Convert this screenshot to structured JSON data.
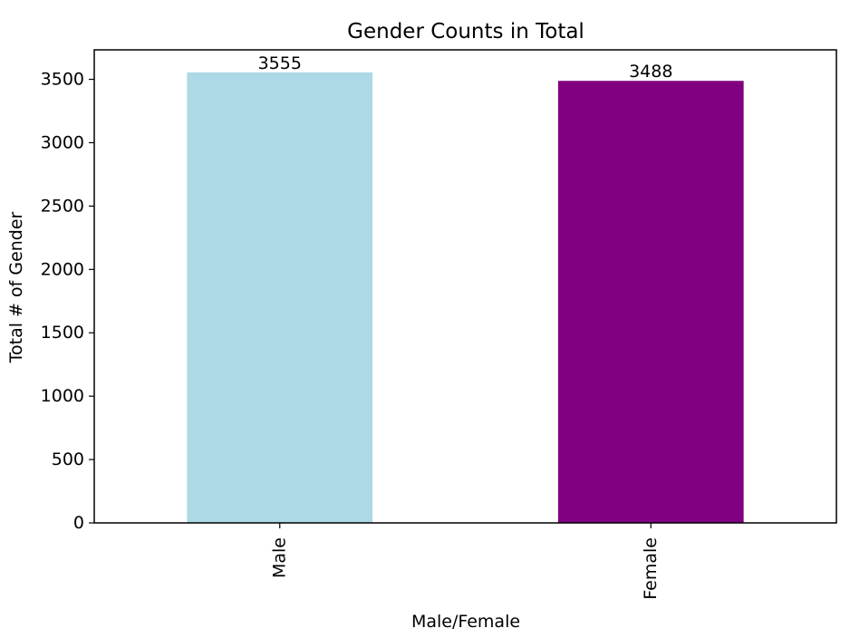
{
  "chart_data": {
    "type": "bar",
    "title": "Gender Counts in Total",
    "xlabel": "Male/Female",
    "ylabel": "Total # of Gender",
    "categories": [
      "Male",
      "Female"
    ],
    "values": [
      3555,
      3488
    ],
    "value_labels": [
      "3555",
      "3488"
    ],
    "colors": [
      "#add8e6",
      "#800080"
    ],
    "ylim": [
      0,
      3732.75
    ],
    "yticks": [
      0,
      500,
      1000,
      1500,
      2000,
      2500,
      3000,
      3500
    ],
    "ytick_labels": [
      "0",
      "500",
      "1000",
      "1500",
      "2000",
      "2500",
      "3000",
      "3500"
    ],
    "grid": false,
    "legend": "none"
  }
}
